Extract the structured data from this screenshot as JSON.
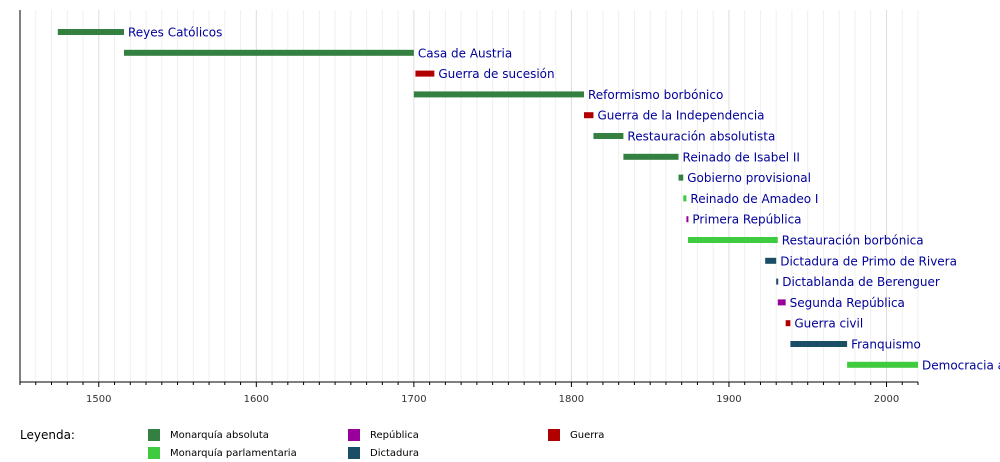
{
  "chart_data": {
    "type": "timeline",
    "xlim": [
      1450,
      2020
    ],
    "x_ticks": [
      1500,
      1600,
      1700,
      1800,
      1900,
      2000
    ],
    "grid": true,
    "legend_title": "Leyenda:",
    "categories": [
      {
        "key": "absoluta",
        "label": "Monarquía absoluta",
        "color": "#348040"
      },
      {
        "key": "parlamentaria",
        "label": "Monarquía parlamentaria",
        "color": "#3fcb3f"
      },
      {
        "key": "republica",
        "label": "República",
        "color": "#990099"
      },
      {
        "key": "dictadura",
        "label": "Dictadura",
        "color": "#1a4d66"
      },
      {
        "key": "guerra",
        "label": "Guerra",
        "color": "#b00000"
      }
    ],
    "periods": [
      {
        "label": "Reyes Católicos",
        "start": 1474,
        "end": 1516,
        "category": "absoluta"
      },
      {
        "label": "Casa de Austria",
        "start": 1516,
        "end": 1700,
        "category": "absoluta"
      },
      {
        "label": "Guerra de sucesión",
        "start": 1701,
        "end": 1713,
        "category": "guerra"
      },
      {
        "label": "Reformismo borbónico",
        "start": 1700,
        "end": 1808,
        "category": "absoluta"
      },
      {
        "label": "Guerra de la Independencia",
        "start": 1808,
        "end": 1814,
        "category": "guerra"
      },
      {
        "label": "Restauración absolutista",
        "start": 1814,
        "end": 1833,
        "category": "absoluta"
      },
      {
        "label": "Reinado de Isabel II",
        "start": 1833,
        "end": 1868,
        "category": "absoluta"
      },
      {
        "label": "Gobierno provisional",
        "start": 1868,
        "end": 1871,
        "category": "absoluta"
      },
      {
        "label": "Reinado de Amadeo I",
        "start": 1871,
        "end": 1873,
        "category": "parlamentaria"
      },
      {
        "label": "Primera República",
        "start": 1873,
        "end": 1874,
        "category": "republica"
      },
      {
        "label": "Restauración borbónica",
        "start": 1874,
        "end": 1931,
        "category": "parlamentaria"
      },
      {
        "label": "Dictadura de Primo de Rivera",
        "start": 1923,
        "end": 1930,
        "category": "dictadura"
      },
      {
        "label": "Dictablanda de Berenguer",
        "start": 1930,
        "end": 1931,
        "category": "dictadura"
      },
      {
        "label": "Segunda República",
        "start": 1931,
        "end": 1936,
        "category": "republica"
      },
      {
        "label": "Guerra civil",
        "start": 1936,
        "end": 1939,
        "category": "guerra"
      },
      {
        "label": "Franquismo",
        "start": 1939,
        "end": 1975,
        "category": "dictadura"
      },
      {
        "label": "Democracia a",
        "start": 1975,
        "end": 2020,
        "category": "parlamentaria"
      }
    ]
  }
}
